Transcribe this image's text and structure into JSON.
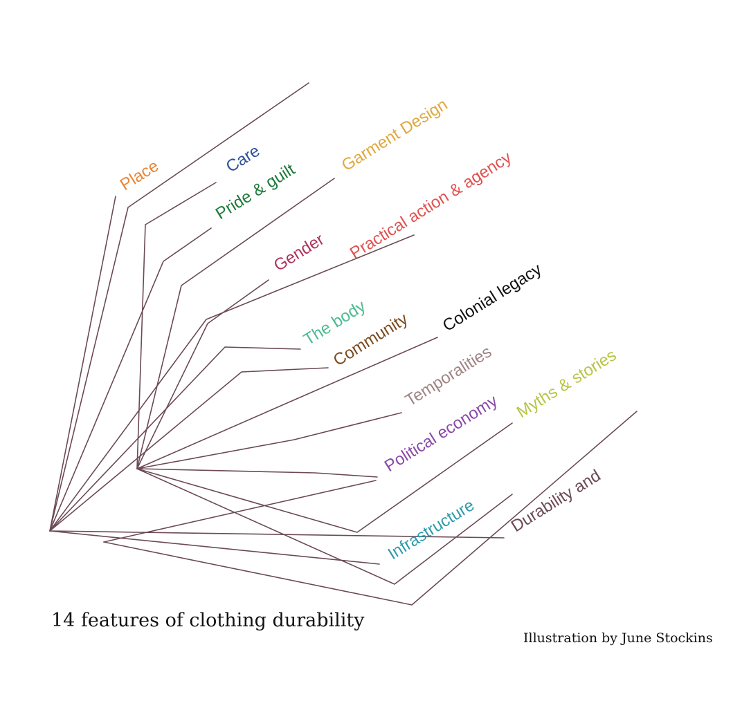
{
  "diagram": {
    "title": "14 features of clothing durability",
    "credit": "Illustration by June Stockins",
    "line_color": "#6b4a55",
    "features": [
      {
        "label": "Place",
        "color": "#e8873a"
      },
      {
        "label": "Care",
        "color": "#2e4f9a"
      },
      {
        "label": "Pride & guilt",
        "color": "#1f7a3a"
      },
      {
        "label": "Garment Design",
        "color": "#e0a83c"
      },
      {
        "label": "Practical action & agency",
        "color": "#e0524f"
      },
      {
        "label": "Gender",
        "color": "#b0325e"
      },
      {
        "label": "The body",
        "color": "#4fba92"
      },
      {
        "label": "Community",
        "color": "#7a4a1e"
      },
      {
        "label": "Colonial legacy",
        "color": "#111111"
      },
      {
        "label": "Temporalities",
        "color": "#a08484"
      },
      {
        "label": "Political economy",
        "color": "#8a4aa8"
      },
      {
        "label": "Myths & stories",
        "color": "#b8c445"
      },
      {
        "label": "Infrastructure",
        "color": "#2e9aaa"
      },
      {
        "label": "Durability and",
        "color": "#6b4a55"
      }
    ]
  }
}
